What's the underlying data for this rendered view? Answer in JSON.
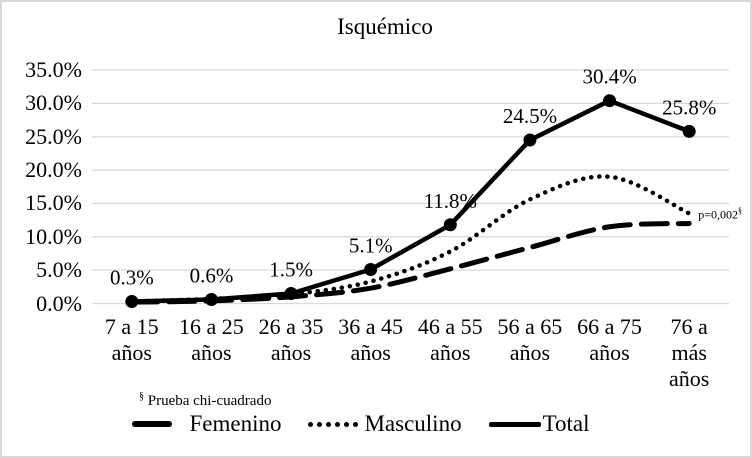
{
  "chart_data": {
    "type": "line",
    "title": "Isquémico",
    "categories": [
      "7 a 15\naños",
      "16 a 25\naños",
      "26 a 35\naños",
      "36 a 45\naños",
      "46 a 55\naños",
      "56 a 65\naños",
      "66 a 75\naños",
      "76 a\nmás\naños"
    ],
    "series": [
      {
        "name": "Femenino",
        "style": "dashed",
        "color": "#000000",
        "smooth": true,
        "marker": "none",
        "data_labels": false,
        "values": [
          0.2,
          0.4,
          1.0,
          2.3,
          5.2,
          8.4,
          11.5,
          12.0
        ]
      },
      {
        "name": "Masculino",
        "style": "dotted",
        "color": "#000000",
        "smooth": true,
        "marker": "none",
        "data_labels": false,
        "values": [
          0.3,
          0.7,
          1.4,
          3.3,
          7.8,
          15.6,
          19.0,
          13.5
        ]
      },
      {
        "name": "Total",
        "style": "solid",
        "color": "#000000",
        "smooth": false,
        "marker": "circle",
        "data_labels": true,
        "values": [
          0.3,
          0.6,
          1.5,
          5.1,
          11.8,
          24.5,
          30.4,
          25.8
        ],
        "label_texts": [
          "0.3%",
          "0.6%",
          "1.5%",
          "5.1%",
          "11.8%",
          "24.5%",
          "30.4%",
          "25.8%"
        ]
      }
    ],
    "xlabel": "",
    "ylabel": "",
    "ylim": [
      0,
      35
    ],
    "ytick_step": 5,
    "ytick_labels": [
      "0.0%",
      "5.0%",
      "10.0%",
      "15.0%",
      "20.0%",
      "25.0%",
      "30.0%",
      "35.0%"
    ],
    "grid": true,
    "legend_position": "bottom",
    "annotation": {
      "text": "p=0,002",
      "superscript": "§"
    },
    "footnote": {
      "superscript": "§",
      "text": "Prueba chi-cuadrado"
    }
  },
  "colors": {
    "line": "#000000",
    "gridline": "#d9d9d9",
    "border": "#d8d8d8",
    "background": "#ffffff",
    "text": "#000000"
  }
}
